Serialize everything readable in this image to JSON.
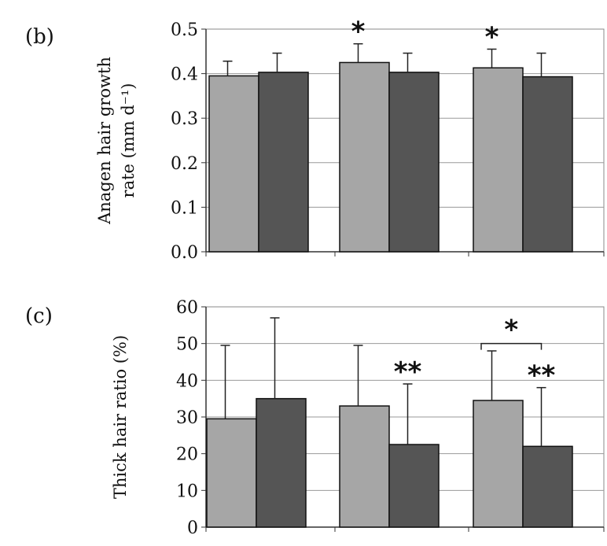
{
  "chart_data": [
    {
      "type": "bar",
      "panel_label": "(b)",
      "ylabel": "Anagen hair growth rate (mm d⁻¹)",
      "ylabel_lines": [
        "Anagen hair growth",
        "rate (mm d⁻¹)"
      ],
      "ylim": [
        0,
        0.5
      ],
      "yticks": [
        0.0,
        0.1,
        0.2,
        0.3,
        0.4,
        0.5
      ],
      "ytick_labels": [
        "0.0",
        "0.1",
        "0.2",
        "0.3",
        "0.4",
        "0.5"
      ],
      "grid": true,
      "groups": 3,
      "series": [
        {
          "name": "light",
          "color": "#a6a6a6",
          "values": [
            0.395,
            0.425,
            0.413
          ],
          "errors": [
            0.033,
            0.042,
            0.042
          ]
        },
        {
          "name": "dark",
          "color": "#555555",
          "values": [
            0.403,
            0.403,
            0.393
          ],
          "errors": [
            0.043,
            0.043,
            0.053
          ]
        }
      ],
      "annotations": [
        {
          "text": "*",
          "group": 1,
          "series": 0
        },
        {
          "text": "*",
          "group": 2,
          "series": 0
        }
      ]
    },
    {
      "type": "bar",
      "panel_label": "(c)",
      "ylabel": "Thick hair ratio (%)",
      "ylim": [
        0,
        60
      ],
      "yticks": [
        0,
        10,
        20,
        30,
        40,
        50,
        60
      ],
      "ytick_labels": [
        "0",
        "10",
        "20",
        "30",
        "40",
        "50",
        "60"
      ],
      "grid": true,
      "groups": 3,
      "series": [
        {
          "name": "light",
          "color": "#a6a6a6",
          "values": [
            29.5,
            33,
            34.5
          ],
          "errors": [
            20,
            16.5,
            13.5
          ]
        },
        {
          "name": "dark",
          "color": "#555555",
          "values": [
            35,
            22.5,
            22
          ],
          "errors": [
            22,
            16.5,
            16
          ]
        }
      ],
      "annotations": [
        {
          "text": "**",
          "group": 1,
          "series": 1
        },
        {
          "text": "**",
          "group": 2,
          "series": 1
        }
      ],
      "brackets": [
        {
          "text": "*",
          "group": 2,
          "from_series": 0,
          "to_series": 1,
          "y": 50
        }
      ]
    }
  ]
}
